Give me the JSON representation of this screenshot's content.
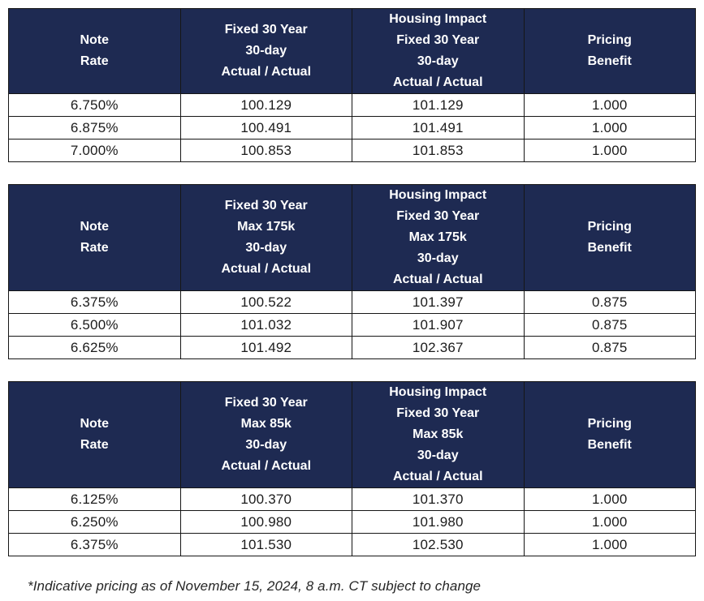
{
  "colors": {
    "header_bg": "#1e2a52",
    "header_text": "#ffffff",
    "body_text": "#1b1b1b",
    "border": "#161616"
  },
  "tables": [
    {
      "name": "Fixed 30 Year",
      "columns": [
        "Note\nRate",
        "Fixed 30 Year\n30-day\nActual / Actual",
        "Housing Impact\nFixed 30 Year\n30-day\nActual / Actual",
        "Pricing\nBenefit"
      ],
      "rows": [
        [
          "6.750%",
          "100.129",
          "101.129",
          "1.000"
        ],
        [
          "6.875%",
          "100.491",
          "101.491",
          "1.000"
        ],
        [
          "7.000%",
          "100.853",
          "101.853",
          "1.000"
        ]
      ]
    },
    {
      "name": "Fixed 30 Year Max 175k",
      "columns": [
        "Note\nRate",
        "Fixed 30 Year\nMax 175k\n30-day\nActual / Actual",
        "Housing Impact\nFixed 30 Year\nMax 175k\n30-day\nActual / Actual",
        "Pricing\nBenefit"
      ],
      "rows": [
        [
          "6.375%",
          "100.522",
          "101.397",
          "0.875"
        ],
        [
          "6.500%",
          "101.032",
          "101.907",
          "0.875"
        ],
        [
          "6.625%",
          "101.492",
          "102.367",
          "0.875"
        ]
      ]
    },
    {
      "name": "Fixed 30 Year Max 85k",
      "columns": [
        "Note\nRate",
        "Fixed 30 Year\nMax 85k\n30-day\nActual / Actual",
        "Housing Impact\nFixed 30 Year\nMax 85k\n30-day\nActual / Actual",
        "Pricing\nBenefit"
      ],
      "rows": [
        [
          "6.125%",
          "100.370",
          "101.370",
          "1.000"
        ],
        [
          "6.250%",
          "100.980",
          "101.980",
          "1.000"
        ],
        [
          "6.375%",
          "101.530",
          "102.530",
          "1.000"
        ]
      ]
    }
  ],
  "footnote": "*Indicative pricing as of November 15, 2024, 8 a.m. CT subject to change"
}
